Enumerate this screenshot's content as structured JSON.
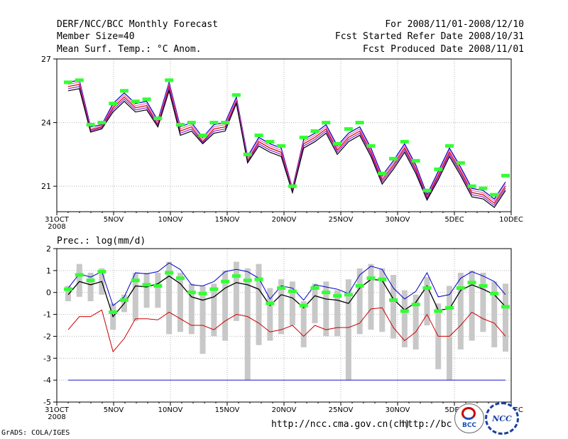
{
  "header": {
    "left": [
      "DERF/NCC/BCC Monthly Forecast",
      "Member Size=40",
      "Mean Surf. Temp.: °C Anom."
    ],
    "right": [
      "For 2008/11/01-2008/12/10",
      "Fcst Started Refer Date 2008/10/31",
      "Fcst Produced Date 2008/11/01"
    ]
  },
  "prec_label": "Prec.: log(mm/d)",
  "footer": {
    "grads": "GrADS: COLA/IGES",
    "url1": "http://ncc.cma.gov.cn(ch)",
    "url2": "http://bcc.cma.gov.cn"
  },
  "logos": {
    "bcc": "BCC",
    "ncc": "NCC"
  },
  "colors": {
    "grid": "#b4b4b4",
    "bar": "#c8c8c8",
    "mean": "#000000",
    "upper": "#0000cc",
    "lower": "#cc0000",
    "obs": "#33ff33",
    "pink": "#ff69b4",
    "purple": "#8a2be2"
  },
  "chart_data": [
    {
      "type": "line",
      "title": "Mean Surf. Temp.: °C Anom.",
      "xlabel": "",
      "ylabel": "",
      "x_tick_labels": [
        "31OCT",
        "5NOV",
        "10NOV",
        "15NOV",
        "20NOV",
        "25NOV",
        "30NOV",
        "5DEC",
        "10DEC"
      ],
      "x_sub_label": "2008",
      "y_ticks": [
        21,
        24,
        27
      ],
      "ylim": [
        19.8,
        27.0
      ],
      "xlim": [
        0,
        40
      ],
      "series": [
        {
          "name": "member-1",
          "values": [
            25.9,
            26.0,
            23.8,
            23.9,
            24.9,
            25.4,
            24.9,
            25.0,
            24.1,
            25.9,
            23.8,
            24.0,
            23.3,
            23.9,
            24.0,
            25.2,
            22.4,
            23.3,
            23.0,
            22.8,
            20.9,
            23.2,
            23.5,
            23.9,
            22.9,
            23.5,
            23.8,
            22.8,
            21.5,
            22.2,
            23.0,
            22.0,
            20.6,
            21.7,
            22.8,
            21.9,
            20.9,
            20.8,
            20.4,
            21.2
          ]
        },
        {
          "name": "member-2",
          "values": [
            25.8,
            25.9,
            23.7,
            23.85,
            24.8,
            25.3,
            24.8,
            24.9,
            24.0,
            25.8,
            23.7,
            23.9,
            23.2,
            23.8,
            23.9,
            25.1,
            22.3,
            23.2,
            22.9,
            22.7,
            20.85,
            23.1,
            23.4,
            23.8,
            22.8,
            23.4,
            23.7,
            22.7,
            21.4,
            22.1,
            22.9,
            21.9,
            20.5,
            21.6,
            22.7,
            21.8,
            20.8,
            20.7,
            20.3,
            21.1
          ]
        },
        {
          "name": "member-3",
          "values": [
            25.7,
            25.8,
            23.65,
            23.8,
            24.7,
            25.2,
            24.7,
            24.8,
            23.9,
            25.7,
            23.6,
            23.8,
            23.1,
            23.7,
            23.8,
            25.0,
            22.2,
            23.1,
            22.8,
            22.6,
            20.8,
            23.0,
            23.3,
            23.7,
            22.7,
            23.3,
            23.6,
            22.6,
            21.3,
            22.0,
            22.8,
            21.8,
            20.45,
            21.5,
            22.6,
            21.7,
            20.7,
            20.6,
            20.2,
            21.0
          ]
        },
        {
          "name": "member-4",
          "values": [
            25.6,
            25.7,
            23.6,
            23.75,
            24.6,
            25.1,
            24.6,
            24.7,
            23.85,
            25.6,
            23.5,
            23.7,
            23.05,
            23.6,
            23.7,
            24.95,
            22.15,
            23.0,
            22.7,
            22.5,
            20.75,
            22.9,
            23.2,
            23.6,
            22.6,
            23.2,
            23.5,
            22.5,
            21.2,
            21.9,
            22.7,
            21.7,
            20.4,
            21.4,
            22.5,
            21.6,
            20.6,
            20.5,
            20.1,
            20.9
          ]
        },
        {
          "name": "member-5",
          "values": [
            25.5,
            25.6,
            23.55,
            23.7,
            24.5,
            25.0,
            24.5,
            24.6,
            23.8,
            25.5,
            23.4,
            23.6,
            23.0,
            23.5,
            23.6,
            24.9,
            22.1,
            22.9,
            22.6,
            22.4,
            20.7,
            22.8,
            23.1,
            23.5,
            22.5,
            23.1,
            23.4,
            22.4,
            21.1,
            21.8,
            22.6,
            21.6,
            20.35,
            21.3,
            22.4,
            21.5,
            20.5,
            20.4,
            20.0,
            20.8
          ]
        },
        {
          "name": "observed",
          "values": [
            25.9,
            26.0,
            23.9,
            24.0,
            24.9,
            25.5,
            25.0,
            25.1,
            24.2,
            26.0,
            23.9,
            24.0,
            23.4,
            24.0,
            24.0,
            25.3,
            22.5,
            23.4,
            23.1,
            22.9,
            21.0,
            23.3,
            23.6,
            24.0,
            23.0,
            23.7,
            24.0,
            22.9,
            21.6,
            22.3,
            23.1,
            22.2,
            20.8,
            21.8,
            22.9,
            22.1,
            21.0,
            20.9,
            20.6,
            21.5
          ]
        }
      ]
    },
    {
      "type": "line",
      "title": "Prec.: log(mm/d)",
      "xlabel": "",
      "ylabel": "",
      "x_tick_labels": [
        "31OCT",
        "5NOV",
        "10NOV",
        "15NOV",
        "20NOV",
        "25NOV",
        "30NOV",
        "5DEC",
        "10DEC"
      ],
      "x_sub_label": "2008",
      "y_ticks": [
        -5,
        -4,
        -3,
        -2,
        -1,
        0,
        1,
        2
      ],
      "ylim": [
        -5,
        2
      ],
      "xlim": [
        0,
        40
      ],
      "range_bars": {
        "low": [
          -0.4,
          -0.2,
          -0.4,
          -0.1,
          -1.7,
          -0.9,
          -1.3,
          -0.7,
          -0.7,
          -1.9,
          -1.8,
          -1.9,
          -2.8,
          -2.0,
          -2.2,
          -1.3,
          -4.0,
          -2.4,
          -2.2,
          -1.9,
          -1.5,
          -2.5,
          -1.4,
          -2.0,
          -2.0,
          -4.0,
          -1.9,
          -1.7,
          -1.8,
          -2.1,
          -2.5,
          -2.6,
          -1.5,
          -3.5,
          -4.0,
          -2.6,
          -2.2,
          -1.8,
          -2.5,
          -2.7
        ],
        "high": [
          0.3,
          1.3,
          0.9,
          1.1,
          -0.5,
          -0.1,
          0.9,
          0.9,
          0.9,
          1.4,
          0.9,
          0.4,
          0.3,
          0.4,
          1.0,
          1.4,
          1.1,
          1.3,
          0.2,
          0.6,
          0.5,
          -0.4,
          0.4,
          0.5,
          0.1,
          0.6,
          1.1,
          1.3,
          1.1,
          0.8,
          0.1,
          -0.1,
          0.7,
          -0.5,
          0.3,
          0.9,
          1.0,
          0.9,
          0.5,
          0.4
        ]
      },
      "series": [
        {
          "name": "upper",
          "values": [
            0.2,
            0.85,
            0.7,
            0.95,
            -0.6,
            -0.2,
            0.9,
            0.85,
            0.95,
            1.35,
            1.05,
            0.35,
            0.3,
            0.5,
            0.95,
            1.05,
            0.95,
            0.65,
            -0.3,
            0.3,
            0.2,
            -0.35,
            0.35,
            0.25,
            0.15,
            -0.05,
            0.8,
            1.2,
            1.05,
            0.2,
            -0.3,
            0.05,
            0.9,
            -0.2,
            -0.1,
            0.65,
            0.95,
            0.75,
            0.5,
            -0.1
          ]
        },
        {
          "name": "mean",
          "values": [
            -0.1,
            0.5,
            0.35,
            0.5,
            -1.1,
            -0.5,
            0.3,
            0.25,
            0.4,
            0.75,
            0.4,
            -0.2,
            -0.35,
            -0.2,
            0.2,
            0.45,
            0.35,
            0.15,
            -0.6,
            -0.1,
            -0.25,
            -0.7,
            -0.15,
            -0.3,
            -0.35,
            -0.5,
            0.2,
            0.6,
            0.55,
            -0.3,
            -0.8,
            -0.45,
            0.3,
            -0.8,
            -0.75,
            0.1,
            0.35,
            0.15,
            -0.1,
            -0.65
          ]
        },
        {
          "name": "lower",
          "values": [
            -1.7,
            -1.1,
            -1.1,
            -0.8,
            -2.7,
            -2.1,
            -1.2,
            -1.2,
            -1.25,
            -0.9,
            -1.2,
            -1.5,
            -1.5,
            -1.7,
            -1.3,
            -1.0,
            -1.1,
            -1.4,
            -1.8,
            -1.7,
            -1.5,
            -2.0,
            -1.5,
            -1.7,
            -1.6,
            -1.6,
            -1.4,
            -0.75,
            -0.7,
            -1.6,
            -2.2,
            -1.8,
            -1.0,
            -2.0,
            -2.0,
            -1.5,
            -0.9,
            -1.2,
            -1.4,
            -2.0
          ]
        },
        {
          "name": "observed",
          "values": [
            0.15,
            0.8,
            0.55,
            0.95,
            -0.9,
            -0.35,
            0.55,
            0.35,
            0.3,
            0.9,
            0.65,
            0.0,
            -0.05,
            0.15,
            0.5,
            0.75,
            0.55,
            0.6,
            -0.5,
            0.2,
            0.05,
            -0.6,
            0.2,
            0.0,
            -0.15,
            -0.1,
            0.3,
            0.65,
            0.6,
            -0.35,
            -0.85,
            -0.55,
            0.2,
            -0.85,
            -0.7,
            0.2,
            0.45,
            0.3,
            -0.05,
            -0.65
          ]
        },
        {
          "name": "floor",
          "values": [
            -4,
            -4,
            -4,
            -4,
            -4,
            -4,
            -4,
            -4,
            -4,
            -4,
            -4,
            -4,
            -4,
            -4,
            -4,
            -4,
            -4,
            -4,
            -4,
            -4,
            -4,
            -4,
            -4,
            -4,
            -4,
            -4,
            -4,
            -4,
            -4,
            -4,
            -4,
            -4,
            -4,
            -4,
            -4,
            -4,
            -4,
            -4,
            -4,
            -4
          ]
        }
      ]
    }
  ]
}
